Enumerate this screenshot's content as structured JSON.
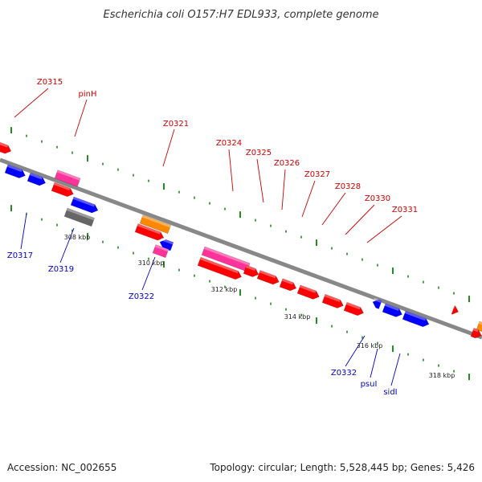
{
  "title": "Escherichia coli O157:H7 EDL933, complete genome",
  "footer": {
    "accession": "Accession: NC_002655",
    "topology": "Topology: circular; Length: 5,528,445 bp; Genes: 5,426"
  },
  "colors": {
    "backbone": "#888888",
    "label_top": "#cc0000",
    "label_bottom": "#0000cc",
    "tick": "#228b22",
    "red": "#ff0000",
    "pink": "#ff3399",
    "orange": "#ff8800",
    "blue": "#0000ff",
    "gray": "#666666"
  },
  "ticks": [
    {
      "label": "308 kbp"
    },
    {
      "label": "310 kbp"
    },
    {
      "label": "312 kbp"
    },
    {
      "label": "314 kbp"
    },
    {
      "label": "316 kbp"
    },
    {
      "label": "318 kbp"
    }
  ],
  "gene_labels_top": [
    "Z0315",
    "pinH",
    "Z0321",
    "Z0324",
    "Z0325",
    "Z0326",
    "Z0327",
    "Z0328",
    "Z0330",
    "Z0331"
  ],
  "gene_labels_bottom": [
    "Z0317",
    "Z0319",
    "Z0322",
    "Z0332",
    "psuI",
    "sidI"
  ]
}
